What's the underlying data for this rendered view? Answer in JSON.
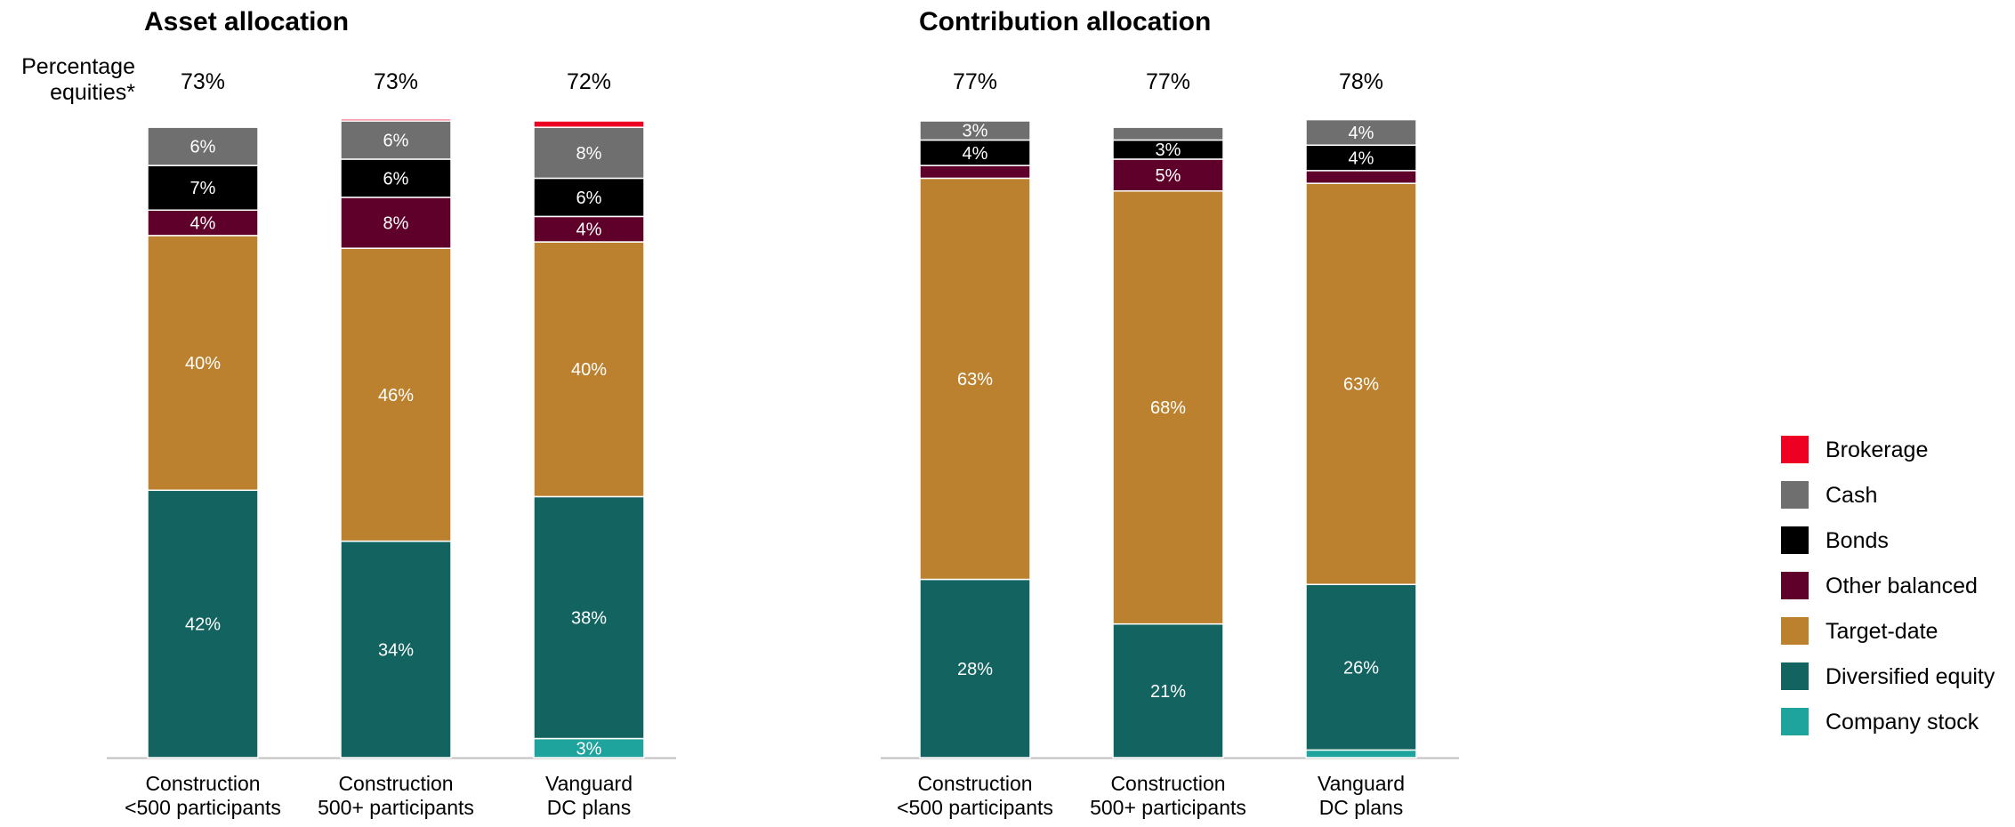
{
  "colors": {
    "Brokerage": "#EE0022",
    "Cash": "#6F6F6F",
    "Bonds": "#000000",
    "Other balanced": "#5E0029",
    "Target-date": "#BC812E",
    "Diversified equity": "#136360",
    "Company stock": "#1FA39D",
    "axis": "#BFBFBF",
    "label_light": "#FFFFFF"
  },
  "equities_label_line1": "Percentage",
  "equities_label_line2": "equities*",
  "chart_data": [
    {
      "type": "bar",
      "stacked": true,
      "title": "Asset allocation",
      "categories": [
        [
          "Construction",
          "<500 participants"
        ],
        [
          "Construction",
          "500+ participants"
        ],
        [
          "Vanguard",
          "DC plans"
        ]
      ],
      "percentage_equities": [
        "73%",
        "73%",
        "72%"
      ],
      "series": [
        {
          "name": "Company stock",
          "values": [
            0,
            0,
            3
          ],
          "labels": [
            "",
            "",
            "3%"
          ]
        },
        {
          "name": "Diversified equity",
          "values": [
            42,
            34,
            38
          ],
          "labels": [
            "42%",
            "34%",
            "38%"
          ]
        },
        {
          "name": "Target-date",
          "values": [
            40,
            46,
            40
          ],
          "labels": [
            "40%",
            "46%",
            "40%"
          ]
        },
        {
          "name": "Other balanced",
          "values": [
            4,
            8,
            4
          ],
          "labels": [
            "4%",
            "8%",
            "4%"
          ]
        },
        {
          "name": "Bonds",
          "values": [
            7,
            6,
            6
          ],
          "labels": [
            "7%",
            "6%",
            "6%"
          ]
        },
        {
          "name": "Cash",
          "values": [
            6,
            6,
            8
          ],
          "labels": [
            "6%",
            "6%",
            "8%"
          ]
        },
        {
          "name": "Brokerage",
          "values": [
            0,
            0.3,
            1
          ],
          "labels": [
            "",
            "",
            ""
          ]
        }
      ],
      "ylim": [
        0,
        100
      ],
      "grid": false
    },
    {
      "type": "bar",
      "stacked": true,
      "title": "Contribution allocation",
      "categories": [
        [
          "Construction",
          "<500 participants"
        ],
        [
          "Construction",
          "500+ participants"
        ],
        [
          "Vanguard",
          "DC plans"
        ]
      ],
      "percentage_equities": [
        "77%",
        "77%",
        "78%"
      ],
      "series": [
        {
          "name": "Company stock",
          "values": [
            0,
            0,
            1.2
          ],
          "labels": [
            "",
            "",
            ""
          ]
        },
        {
          "name": "Diversified equity",
          "values": [
            28,
            21,
            26
          ],
          "labels": [
            "28%",
            "21%",
            "26%"
          ]
        },
        {
          "name": "Target-date",
          "values": [
            63,
            68,
            63
          ],
          "labels": [
            "63%",
            "68%",
            "63%"
          ]
        },
        {
          "name": "Other balanced",
          "values": [
            2,
            5,
            2
          ],
          "labels": [
            "",
            "5%",
            ""
          ]
        },
        {
          "name": "Bonds",
          "values": [
            4,
            3,
            4
          ],
          "labels": [
            "4%",
            "3%",
            "4%"
          ]
        },
        {
          "name": "Cash",
          "values": [
            3,
            2,
            4
          ],
          "labels": [
            "3%",
            "",
            "4%"
          ]
        },
        {
          "name": "Brokerage",
          "values": [
            0,
            0,
            0
          ],
          "labels": [
            "",
            "",
            ""
          ]
        }
      ],
      "ylim": [
        0,
        100
      ],
      "grid": false
    }
  ],
  "legend": {
    "placement": "right",
    "items": [
      "Brokerage",
      "Cash",
      "Bonds",
      "Other balanced",
      "Target-date",
      "Diversified equity",
      "Company stock"
    ]
  }
}
